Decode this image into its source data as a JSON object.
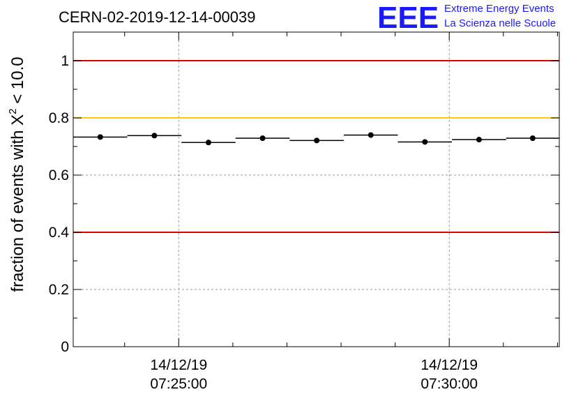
{
  "chart_data": {
    "type": "scatter",
    "title": "CERN-02-2019-12-14-00039",
    "ylabel": {
      "prefix": "fraction of events with ",
      "symbol": "X",
      "superscript": "2",
      "suffix": " < 10.0"
    },
    "ylim": [
      0,
      1.1
    ],
    "yticks": [
      0,
      0.2,
      0.4,
      0.6,
      0.8,
      1
    ],
    "ytick_labels": [
      "0",
      "0.2",
      "0.4",
      "0.6",
      "0.8",
      "1"
    ],
    "xlim": [
      "07:23:03",
      "07:32:02"
    ],
    "xtick_major": [
      {
        "time": "07:25:00",
        "date_label": "14/12/19",
        "time_label": "07:25:00"
      },
      {
        "time": "07:30:00",
        "date_label": "14/12/19",
        "time_label": "07:30:00"
      }
    ],
    "xtick_minor": [
      "07:24:00",
      "07:26:00",
      "07:27:00",
      "07:28:00",
      "07:29:00",
      "07:31:00",
      "07:32:00"
    ],
    "grid": true,
    "reference_lines": [
      {
        "y": 1.0,
        "color": "#e00000"
      },
      {
        "y": 0.8,
        "color": "#ffcc00"
      },
      {
        "y": 0.4,
        "color": "#e00000"
      }
    ],
    "points": [
      {
        "x_start": "07:23:03",
        "x_end": "07:24:03",
        "y": 0.733
      },
      {
        "x_start": "07:24:03",
        "x_end": "07:25:03",
        "y": 0.738
      },
      {
        "x_start": "07:25:03",
        "x_end": "07:26:03",
        "y": 0.714
      },
      {
        "x_start": "07:26:03",
        "x_end": "07:27:03",
        "y": 0.729
      },
      {
        "x_start": "07:27:03",
        "x_end": "07:28:03",
        "y": 0.721
      },
      {
        "x_start": "07:28:03",
        "x_end": "07:29:03",
        "y": 0.74
      },
      {
        "x_start": "07:29:03",
        "x_end": "07:30:03",
        "y": 0.716
      },
      {
        "x_start": "07:30:03",
        "x_end": "07:31:03",
        "y": 0.724
      },
      {
        "x_start": "07:31:03",
        "x_end": "07:32:02",
        "y": 0.729
      }
    ]
  },
  "logo": {
    "letters": "EEE",
    "line1": "Extreme Energy Events",
    "line2": "La Scienza nelle Scuole"
  }
}
